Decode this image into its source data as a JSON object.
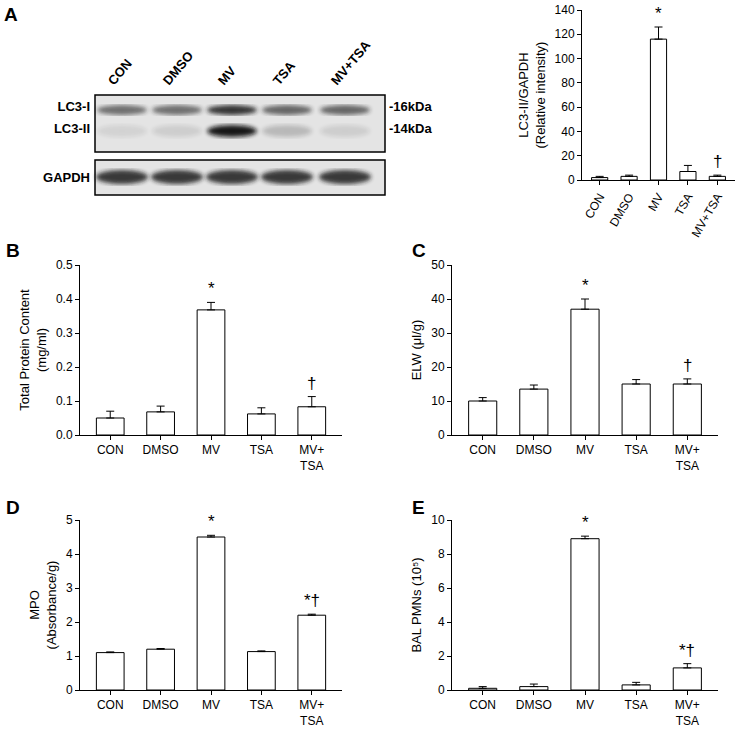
{
  "blot": {
    "panel": "A",
    "lanes": [
      "CON",
      "DMSO",
      "MV",
      "TSA",
      "MV+TSA"
    ],
    "rows": [
      {
        "label": "LC3-I",
        "kda": "-16kDa"
      },
      {
        "label": "LC3-II",
        "kda": "-14kDa"
      },
      {
        "label": "GAPDH"
      }
    ]
  },
  "chart_data": [
    {
      "panel": "A",
      "type": "bar",
      "categories": [
        "CON",
        "DMSO",
        "MV",
        "TSA",
        "MV+TSA"
      ],
      "values": [
        2,
        3,
        116,
        7,
        3
      ],
      "errors": [
        1,
        1,
        10,
        5,
        1
      ],
      "color": "#ffffff",
      "ylabel": "LC3-II/GAPDH\n(Relative intensity)",
      "ylim": [
        0,
        140
      ],
      "yticks": [
        0,
        20,
        40,
        60,
        80,
        100,
        120,
        140
      ],
      "annotations": [
        {
          "category": "MV",
          "text": "*"
        },
        {
          "category": "MV+TSA",
          "text": "†"
        }
      ]
    },
    {
      "panel": "B",
      "type": "bar",
      "categories": [
        "CON",
        "DMSO",
        "MV",
        "TSA",
        "MV+\nTSA"
      ],
      "values": [
        0.05,
        0.068,
        0.368,
        0.062,
        0.083
      ],
      "errors": [
        0.02,
        0.017,
        0.022,
        0.018,
        0.03
      ],
      "color": "#ffffff",
      "ylabel": "Total Protein Content\n(mg/ml)",
      "ylim": [
        0,
        0.5
      ],
      "yticks": [
        {
          "value": 0,
          "label": "0.0"
        },
        0.1,
        0.2,
        0.3,
        0.4,
        0.5
      ],
      "annotations": [
        {
          "category": "MV",
          "text": "*"
        },
        {
          "category": "MV+\nTSA",
          "text": "†"
        }
      ]
    },
    {
      "panel": "C",
      "type": "bar",
      "categories": [
        "CON",
        "DMSO",
        "MV",
        "TSA",
        "MV+\nTSA"
      ],
      "values": [
        10,
        13.5,
        37,
        15,
        15
      ],
      "errors": [
        1,
        1.2,
        3,
        1.3,
        1.5
      ],
      "color": "#ffffff",
      "ylabel": "ELW (μl/g)",
      "ylim": [
        0,
        50
      ],
      "yticks": [
        0,
        10,
        20,
        30,
        40,
        50
      ],
      "annotations": [
        {
          "category": "MV",
          "text": "*"
        },
        {
          "category": "MV+\nTSA",
          "text": "†"
        }
      ]
    },
    {
      "panel": "D",
      "type": "bar",
      "categories": [
        "CON",
        "DMSO",
        "MV",
        "TSA",
        "MV+\nTSA"
      ],
      "values": [
        1.1,
        1.2,
        4.5,
        1.13,
        2.2
      ],
      "errors": [
        0.02,
        0.02,
        0.05,
        0.02,
        0.03
      ],
      "color": "#ffffff",
      "ylabel": "MPO\n(Absorbance/g)",
      "ylim": [
        0,
        5
      ],
      "yticks": [
        0,
        1,
        2,
        3,
        4,
        5
      ],
      "annotations": [
        {
          "category": "MV",
          "text": "*"
        },
        {
          "category": "MV+\nTSA",
          "text": "*†"
        }
      ]
    },
    {
      "panel": "E",
      "type": "bar",
      "categories": [
        "CON",
        "DMSO",
        "MV",
        "TSA",
        "MV+\nTSA"
      ],
      "values": [
        0.1,
        0.2,
        8.9,
        0.3,
        1.3
      ],
      "errors": [
        0.1,
        0.15,
        0.15,
        0.15,
        0.25
      ],
      "color": "#ffffff",
      "ylabel": "BAL PMNs (10⁵)",
      "ylim": [
        0,
        10
      ],
      "yticks": [
        0,
        2,
        4,
        6,
        8,
        10
      ],
      "annotations": [
        {
          "category": "MV",
          "text": "*"
        },
        {
          "category": "MV+\nTSA",
          "text": "*†"
        }
      ]
    }
  ]
}
